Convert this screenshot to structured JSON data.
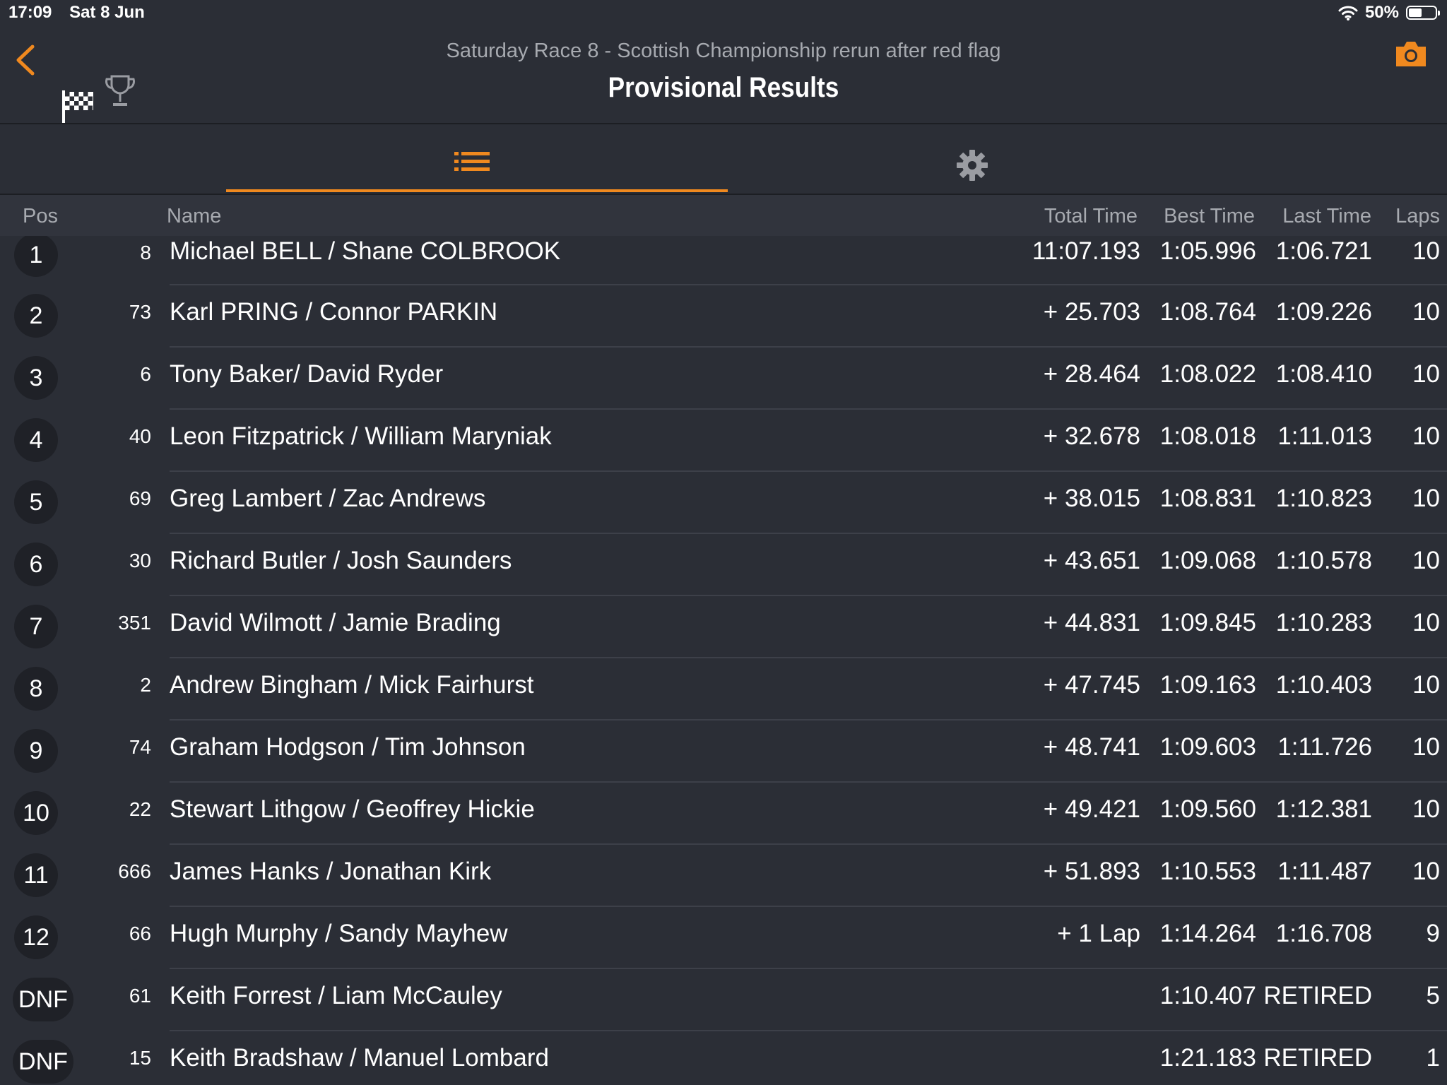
{
  "status_bar": {
    "time": "17:09",
    "date": "Sat 8 Jun",
    "battery": "50%",
    "battery_level": 0.5
  },
  "header": {
    "subtitle": "Saturday Race 8 - Scottish Championship rerun after red flag",
    "title": "Provisional Results",
    "accent_color": "#f0891f"
  },
  "tabs": [
    {
      "icon": "list-icon",
      "selected": true
    },
    {
      "icon": "gear-icon",
      "selected": false
    }
  ],
  "columns": {
    "pos": "Pos",
    "name": "Name",
    "total": "Total Time",
    "best": "Best Time",
    "last": "Last Time",
    "laps": "Laps"
  },
  "results": [
    {
      "pos": "1",
      "num": "8",
      "name": "Michael BELL / Shane COLBROOK",
      "total": "11:07.193",
      "best": "1:05.996",
      "last": "1:06.721",
      "laps": "10"
    },
    {
      "pos": "2",
      "num": "73",
      "name": "Karl PRING / Connor PARKIN",
      "total": "+ 25.703",
      "best": "1:08.764",
      "last": "1:09.226",
      "laps": "10"
    },
    {
      "pos": "3",
      "num": "6",
      "name": "Tony Baker/ David Ryder",
      "total": "+ 28.464",
      "best": "1:08.022",
      "last": "1:08.410",
      "laps": "10"
    },
    {
      "pos": "4",
      "num": "40",
      "name": "Leon Fitzpatrick / William Maryniak",
      "total": "+ 32.678",
      "best": "1:08.018",
      "last": "1:11.013",
      "laps": "10"
    },
    {
      "pos": "5",
      "num": "69",
      "name": "Greg Lambert / Zac Andrews",
      "total": "+ 38.015",
      "best": "1:08.831",
      "last": "1:10.823",
      "laps": "10"
    },
    {
      "pos": "6",
      "num": "30",
      "name": "Richard Butler /  Josh Saunders",
      "total": "+ 43.651",
      "best": "1:09.068",
      "last": "1:10.578",
      "laps": "10"
    },
    {
      "pos": "7",
      "num": "351",
      "name": "David Wilmott /  Jamie Brading",
      "total": "+ 44.831",
      "best": "1:09.845",
      "last": "1:10.283",
      "laps": "10"
    },
    {
      "pos": "8",
      "num": "2",
      "name": "Andrew Bingham / Mick Fairhurst",
      "total": "+ 47.745",
      "best": "1:09.163",
      "last": "1:10.403",
      "laps": "10"
    },
    {
      "pos": "9",
      "num": "74",
      "name": "Graham Hodgson / Tim Johnson",
      "total": "+ 48.741",
      "best": "1:09.603",
      "last": "1:11.726",
      "laps": "10"
    },
    {
      "pos": "10",
      "num": "22",
      "name": "Stewart Lithgow / Geoffrey Hickie",
      "total": "+ 49.421",
      "best": "1:09.560",
      "last": "1:12.381",
      "laps": "10"
    },
    {
      "pos": "11",
      "num": "666",
      "name": "James Hanks /  Jonathan Kirk",
      "total": "+ 51.893",
      "best": "1:10.553",
      "last": "1:11.487",
      "laps": "10"
    },
    {
      "pos": "12",
      "num": "66",
      "name": "Hugh Murphy / Sandy Mayhew",
      "total": "+ 1 Lap",
      "best": "1:14.264",
      "last": "1:16.708",
      "laps": "9"
    },
    {
      "pos": "DNF",
      "num": "61",
      "name": "Keith Forrest / Liam McCauley",
      "total": "",
      "best": "1:10.407",
      "last": "RETIRED",
      "laps": "5"
    },
    {
      "pos": "DNF",
      "num": "15",
      "name": "Keith Bradshaw / Manuel Lombard",
      "total": "",
      "best": "1:21.183",
      "last": "RETIRED",
      "laps": "1"
    }
  ]
}
